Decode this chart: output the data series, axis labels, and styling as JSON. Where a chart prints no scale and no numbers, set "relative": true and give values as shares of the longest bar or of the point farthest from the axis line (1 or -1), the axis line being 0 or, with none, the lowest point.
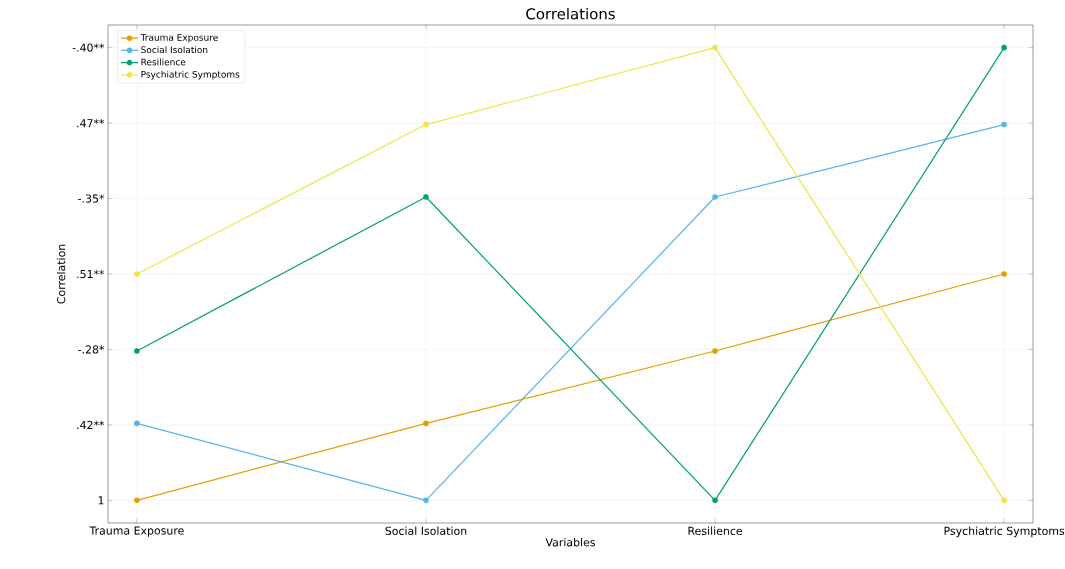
{
  "chart_data": {
    "type": "line",
    "title": "Correlations",
    "xlabel": "Variables",
    "ylabel": "Correlation",
    "relative": true,
    "categories": [
      "Trauma Exposure",
      "Social Isolation",
      "Resilience",
      "Psychiatric Symptoms"
    ],
    "series": [
      {
        "name": "Trauma Exposure",
        "color": "#e69f00",
        "values": [
          0,
          0.17,
          0.33,
          0.5
        ]
      },
      {
        "name": "Social Isolation",
        "color": "#56b4e9",
        "values": [
          0.17,
          0,
          0.67,
          0.83
        ]
      },
      {
        "name": "Resilience",
        "color": "#009e73",
        "values": [
          0.33,
          0.67,
          0,
          1
        ]
      },
      {
        "name": "Psychiatric Symptoms",
        "color": "#f0e442",
        "values": [
          0.5,
          0.83,
          1,
          0
        ]
      }
    ],
    "annotations": [
      "1",
      ".42**",
      "-.28*",
      ".51**",
      "-.35*",
      ".47**",
      "-.40**"
    ],
    "grid": true,
    "legend": "top left",
    "marker": "circle",
    "line_style": "solid"
  }
}
